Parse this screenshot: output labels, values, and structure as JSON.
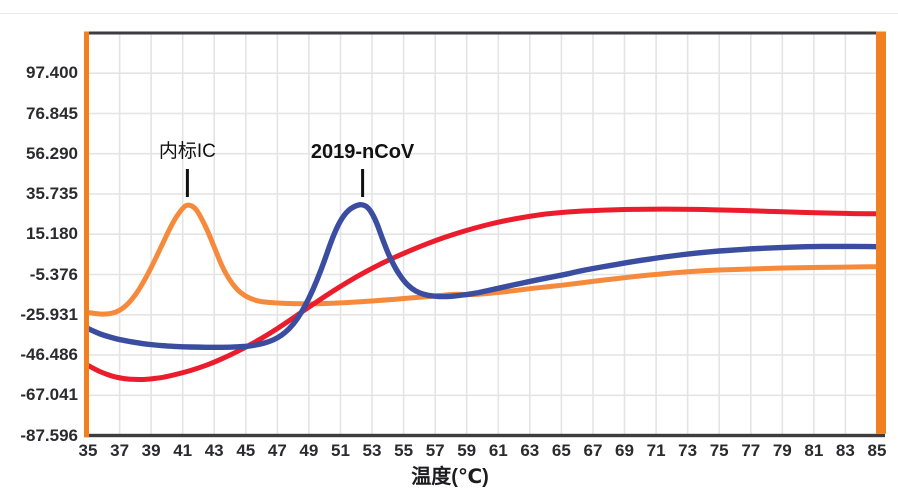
{
  "colors": {
    "background": "#ffffff",
    "grid": "#e4e4e4",
    "axis_dark": "#3d3d40",
    "frame_orange": "#f08020",
    "tick_text": "#2b2b2e",
    "annotation_text": "#121212",
    "annotation_pointer": "#101010",
    "top_rule": "#ebebeb"
  },
  "chart_data": {
    "type": "line",
    "title": "",
    "xlabel": "温度(℃)",
    "ylabel": "",
    "xlim": [
      35,
      85
    ],
    "ylim": [
      -87.596,
      117.955
    ],
    "grid": true,
    "legend_position": "none",
    "x_ticks": [
      35,
      37,
      39,
      41,
      43,
      45,
      47,
      49,
      51,
      53,
      55,
      57,
      59,
      61,
      63,
      65,
      67,
      69,
      71,
      73,
      75,
      77,
      79,
      81,
      83,
      85
    ],
    "y_ticks": [
      "97.400",
      "76.845",
      "56.290",
      "35.735",
      "15.180",
      "-5.376",
      "-25.931",
      "-46.486",
      "-67.041",
      "-87.596"
    ],
    "annotations": [
      {
        "label": "内标IC",
        "x": 41.3,
        "bold": false
      },
      {
        "label": "2019-nCoV",
        "x": 52.4,
        "bold": true
      }
    ],
    "series": [
      {
        "id": "orange",
        "name": "内标IC",
        "color": "#f68a3c",
        "peak": {
          "x": 41.3,
          "y": 30.4
        },
        "points": [
          [
            35,
            -24.8
          ],
          [
            35.5,
            -25.4
          ],
          [
            36,
            -25.7
          ],
          [
            36.5,
            -25.3
          ],
          [
            37,
            -23.9
          ],
          [
            37.5,
            -20.7
          ],
          [
            38,
            -16
          ],
          [
            38.5,
            -9.5
          ],
          [
            39,
            -2
          ],
          [
            39.5,
            6.5
          ],
          [
            40,
            15
          ],
          [
            40.5,
            23
          ],
          [
            41,
            28.6
          ],
          [
            41.3,
            30.4
          ],
          [
            41.7,
            29.3
          ],
          [
            42,
            26.2
          ],
          [
            42.5,
            18.4
          ],
          [
            43,
            8.6
          ],
          [
            43.5,
            -1.4
          ],
          [
            44,
            -8.6
          ],
          [
            44.5,
            -13.6
          ],
          [
            45,
            -16.6
          ],
          [
            45.5,
            -18.3
          ],
          [
            46,
            -19.3
          ],
          [
            47,
            -20
          ],
          [
            48,
            -20.3
          ],
          [
            49,
            -20.4
          ],
          [
            50,
            -20.2
          ],
          [
            51,
            -19.9
          ],
          [
            52,
            -19.4
          ],
          [
            53,
            -18.9
          ],
          [
            54,
            -18.3
          ],
          [
            55,
            -17.7
          ],
          [
            56,
            -17
          ],
          [
            57,
            -16.3
          ],
          [
            58,
            -15.6
          ],
          [
            58.6,
            -15.4
          ],
          [
            59.2,
            -15.8
          ],
          [
            60,
            -15.3
          ],
          [
            61,
            -14.5
          ],
          [
            62,
            -13.7
          ],
          [
            63,
            -12.6
          ],
          [
            64,
            -11.7
          ],
          [
            65,
            -10.9
          ],
          [
            66,
            -9.9
          ],
          [
            67,
            -8.9
          ],
          [
            68,
            -7.9
          ],
          [
            69,
            -7
          ],
          [
            70,
            -6.1
          ],
          [
            71,
            -5.3
          ],
          [
            72,
            -4.6
          ],
          [
            73,
            -4
          ],
          [
            74,
            -3.5
          ],
          [
            75,
            -3.1
          ],
          [
            76,
            -2.8
          ],
          [
            77,
            -2.5
          ],
          [
            78,
            -2.3
          ],
          [
            79,
            -2.1
          ],
          [
            80,
            -1.9
          ],
          [
            81,
            -1.8
          ],
          [
            82,
            -1.7
          ],
          [
            83,
            -1.6
          ],
          [
            84,
            -1.5
          ],
          [
            85,
            -1.4
          ]
        ]
      },
      {
        "id": "red",
        "name": "",
        "color": "#eb1c2c",
        "points": [
          [
            35,
            -51.8
          ],
          [
            35.5,
            -54
          ],
          [
            36,
            -55.8
          ],
          [
            36.5,
            -57.2
          ],
          [
            37,
            -58.2
          ],
          [
            37.5,
            -58.8
          ],
          [
            38,
            -59
          ],
          [
            38.5,
            -59
          ],
          [
            39,
            -58.7
          ],
          [
            39.5,
            -58.2
          ],
          [
            40,
            -57.5
          ],
          [
            41,
            -55.6
          ],
          [
            42,
            -53.2
          ],
          [
            43,
            -50.2
          ],
          [
            44,
            -46.6
          ],
          [
            45,
            -42.5
          ],
          [
            46,
            -38
          ],
          [
            47,
            -33
          ],
          [
            48,
            -27.6
          ],
          [
            49,
            -22
          ],
          [
            50,
            -16.6
          ],
          [
            51,
            -11.4
          ],
          [
            52,
            -6.6
          ],
          [
            53,
            -2.2
          ],
          [
            54,
            1.8
          ],
          [
            55,
            5.4
          ],
          [
            56,
            8.8
          ],
          [
            57,
            11.9
          ],
          [
            58,
            14.7
          ],
          [
            59,
            17.2
          ],
          [
            60,
            19.4
          ],
          [
            61,
            21.4
          ],
          [
            62,
            23
          ],
          [
            63,
            24.4
          ],
          [
            64,
            25.5
          ],
          [
            65,
            26.3
          ],
          [
            66,
            26.9
          ],
          [
            67,
            27.3
          ],
          [
            68,
            27.6
          ],
          [
            69,
            27.8
          ],
          [
            70,
            27.9
          ],
          [
            71,
            28
          ],
          [
            72,
            28
          ],
          [
            73,
            27.9
          ],
          [
            74,
            27.8
          ],
          [
            75,
            27.6
          ],
          [
            76,
            27.4
          ],
          [
            77,
            27.2
          ],
          [
            78,
            26.9
          ],
          [
            79,
            26.7
          ],
          [
            80,
            26.4
          ],
          [
            81,
            26.2
          ],
          [
            82,
            26
          ],
          [
            83,
            25.8
          ],
          [
            84,
            25.7
          ],
          [
            85,
            25.6
          ]
        ]
      },
      {
        "id": "blue",
        "name": "2019-nCoV",
        "color": "#3a4da0",
        "peak": {
          "x": 52.4,
          "y": 30.5
        },
        "points": [
          [
            35,
            -33
          ],
          [
            35.5,
            -34.9
          ],
          [
            36,
            -36.4
          ],
          [
            36.5,
            -37.6
          ],
          [
            37,
            -38.6
          ],
          [
            37.5,
            -39.4
          ],
          [
            38,
            -40.1
          ],
          [
            38.5,
            -40.7
          ],
          [
            39,
            -41.2
          ],
          [
            39.5,
            -41.6
          ],
          [
            40,
            -41.9
          ],
          [
            41,
            -42.3
          ],
          [
            42,
            -42.5
          ],
          [
            43,
            -42.6
          ],
          [
            44,
            -42.5
          ],
          [
            45,
            -42.1
          ],
          [
            45.5,
            -41.6
          ],
          [
            46,
            -40.8
          ],
          [
            46.5,
            -39.6
          ],
          [
            47,
            -37.8
          ],
          [
            47.5,
            -35
          ],
          [
            48,
            -31
          ],
          [
            48.5,
            -25.2
          ],
          [
            49,
            -17.6
          ],
          [
            49.5,
            -8.6
          ],
          [
            50,
            2
          ],
          [
            50.5,
            13.6
          ],
          [
            51,
            22.4
          ],
          [
            51.5,
            27.6
          ],
          [
            52,
            29.9
          ],
          [
            52.4,
            30.5
          ],
          [
            52.8,
            28.6
          ],
          [
            53.2,
            23
          ],
          [
            53.6,
            14.2
          ],
          [
            54,
            5.6
          ],
          [
            54.5,
            -2.6
          ],
          [
            55,
            -8.6
          ],
          [
            55.5,
            -12.6
          ],
          [
            56,
            -14.8
          ],
          [
            56.5,
            -16
          ],
          [
            57,
            -16.5
          ],
          [
            57.5,
            -16.7
          ],
          [
            58,
            -16.5
          ],
          [
            58.5,
            -16.1
          ],
          [
            59,
            -15.6
          ],
          [
            59.5,
            -15
          ],
          [
            60,
            -14.2
          ],
          [
            61,
            -12.4
          ],
          [
            62,
            -10.6
          ],
          [
            63,
            -8.9
          ],
          [
            64,
            -7.3
          ],
          [
            65,
            -5.7
          ],
          [
            65.6,
            -4.7
          ],
          [
            66,
            -3.9
          ],
          [
            67,
            -2.3
          ],
          [
            68,
            -0.9
          ],
          [
            69,
            0.5
          ],
          [
            70,
            1.8
          ],
          [
            71,
            3
          ],
          [
            72,
            4.1
          ],
          [
            73,
            5.1
          ],
          [
            74,
            5.9
          ],
          [
            75,
            6.6
          ],
          [
            76,
            7.2
          ],
          [
            77,
            7.7
          ],
          [
            78,
            8.1
          ],
          [
            79,
            8.4
          ],
          [
            80,
            8.7
          ],
          [
            81,
            8.9
          ],
          [
            82,
            9
          ],
          [
            83,
            9
          ],
          [
            84,
            8.9
          ],
          [
            85,
            8.8
          ]
        ]
      }
    ]
  }
}
